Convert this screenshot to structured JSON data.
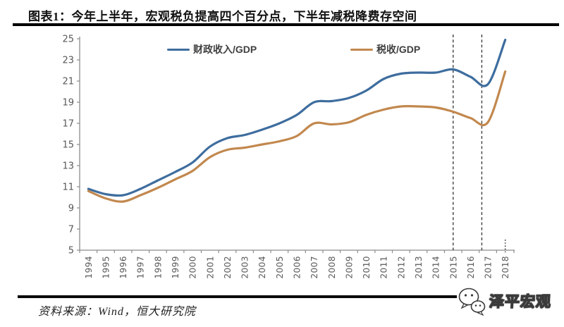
{
  "title": "图表1：今年上半年，宏观税负提高四个百分点，下半年减税降费存空间",
  "source": "资料来源：Wind，恒大研究院",
  "watermark": {
    "text": "泽平宏观",
    "icon": "wechat-bubbles-icon"
  },
  "chart_data": {
    "type": "line",
    "title": "图表1：今年上半年，宏观税负提高四个百分点，下半年减税降费存空间",
    "x": [
      1994,
      1995,
      1996,
      1997,
      1998,
      1999,
      2000,
      2001,
      2002,
      2003,
      2004,
      2005,
      2006,
      2007,
      2008,
      2009,
      2010,
      2011,
      2012,
      2013,
      2014,
      2015,
      2016,
      2017,
      2018
    ],
    "series": [
      {
        "name": "财政收入/GDP",
        "color": "#3E6D9E",
        "values": [
          10.8,
          10.3,
          10.2,
          10.8,
          11.6,
          12.4,
          13.3,
          14.8,
          15.6,
          15.9,
          16.4,
          17.0,
          17.8,
          19.0,
          19.1,
          19.4,
          20.1,
          21.2,
          21.7,
          21.8,
          21.8,
          22.1,
          21.4,
          20.7,
          24.9
        ]
      },
      {
        "name": "税收/GDP",
        "color": "#C2884E",
        "values": [
          10.6,
          9.9,
          9.6,
          10.2,
          10.9,
          11.7,
          12.5,
          13.8,
          14.5,
          14.7,
          15.0,
          15.3,
          15.8,
          17.0,
          16.9,
          17.1,
          17.8,
          18.3,
          18.6,
          18.6,
          18.5,
          18.1,
          17.5,
          17.1,
          21.9
        ]
      }
    ],
    "ylim": [
      5,
      25
    ],
    "ytick_step": 2,
    "xlabel": "",
    "ylabel": "",
    "grid": false,
    "legend_position": "top-inside",
    "dashed_vlines_x": [
      2015,
      2016.65
    ],
    "axis_end_dotted_marker_x": 2018,
    "axis_color": "#8c8c8c",
    "tick_label_color": "#595959",
    "dashed_line_color": "#3f3f3f"
  }
}
